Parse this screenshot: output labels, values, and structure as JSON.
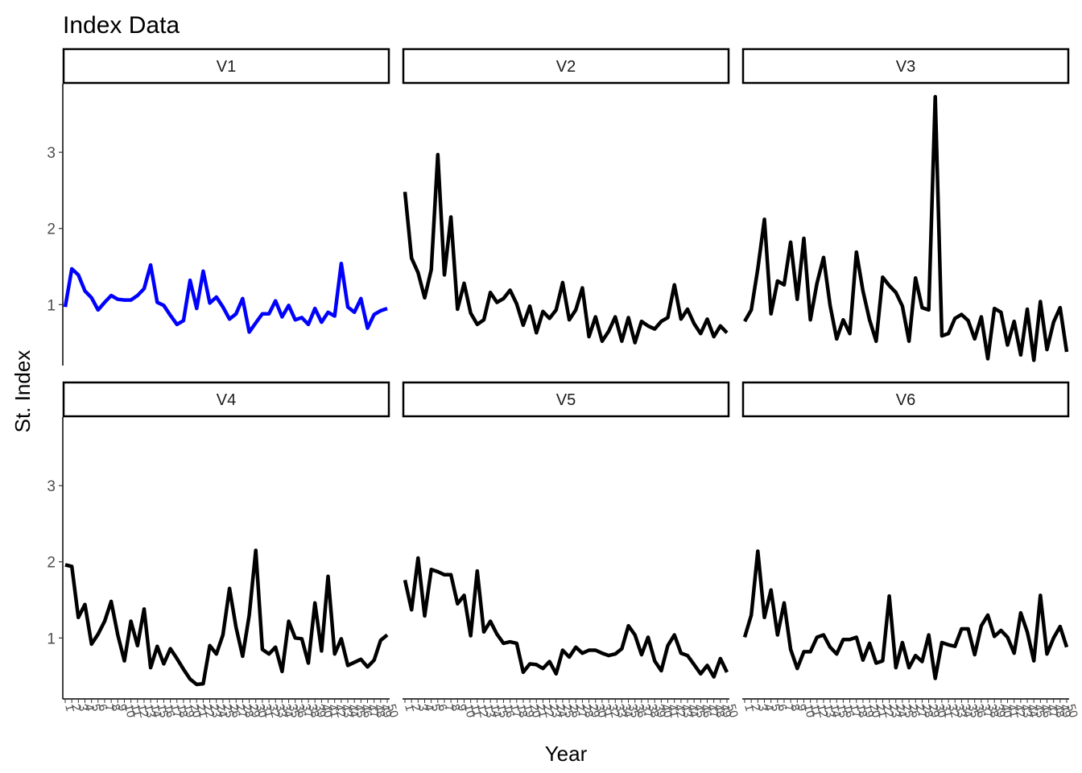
{
  "chart_data": {
    "type": "line",
    "title": "Index Data",
    "xlabel": "Year",
    "ylabel": "St. Index",
    "ylim": [
      0.2,
      3.9
    ],
    "xlim": [
      1,
      50
    ],
    "y_ticks": [
      1,
      2,
      3
    ],
    "x_ticks": [
      1,
      2,
      3,
      4,
      5,
      6,
      7,
      8,
      9,
      10,
      11,
      12,
      13,
      14,
      15,
      16,
      17,
      18,
      19,
      20,
      21,
      22,
      23,
      24,
      25,
      26,
      27,
      28,
      29,
      30,
      31,
      32,
      33,
      34,
      35,
      36,
      37,
      38,
      39,
      40,
      41,
      42,
      43,
      44,
      45,
      46,
      47,
      48,
      49,
      50
    ],
    "x_tick_labels": [
      "1",
      "2",
      "3",
      "4",
      "5",
      "6",
      "7",
      "8",
      "9",
      "10",
      "11",
      "12",
      "13",
      "14",
      "15",
      "16",
      "17",
      "18",
      "19",
      "20",
      "21",
      "22",
      "23",
      "24",
      "25",
      "26",
      "27",
      "28",
      "29",
      "30",
      "31",
      "32",
      "33",
      "34",
      "35",
      "36",
      "37",
      "38",
      "39",
      "40",
      "41",
      "42",
      "43",
      "44",
      "45",
      "46",
      "47",
      "48",
      "49",
      "50"
    ],
    "grid": false,
    "layout": "facet 2 rows x 3 columns, shared axes",
    "x": [
      1,
      2,
      3,
      4,
      5,
      6,
      7,
      8,
      9,
      10,
      11,
      12,
      13,
      14,
      15,
      16,
      17,
      18,
      19,
      20,
      21,
      22,
      23,
      24,
      25,
      26,
      27,
      28,
      29,
      30,
      31,
      32,
      33,
      34,
      35,
      36,
      37,
      38,
      39,
      40,
      41,
      42,
      43,
      44,
      45,
      46,
      47,
      48,
      49,
      50
    ],
    "series": [
      {
        "name": "V1",
        "color": "#0000ff",
        "values": [
          0.97,
          1.47,
          1.39,
          1.18,
          1.09,
          0.93,
          1.03,
          1.12,
          1.07,
          1.06,
          1.06,
          1.12,
          1.21,
          1.52,
          1.03,
          0.99,
          0.86,
          0.74,
          0.79,
          1.32,
          0.95,
          1.44,
          1.02,
          1.1,
          0.97,
          0.81,
          0.88,
          1.08,
          0.64,
          0.76,
          0.88,
          0.88,
          1.05,
          0.84,
          0.99,
          0.8,
          0.83,
          0.74,
          0.95,
          0.77,
          0.9,
          0.85,
          1.54,
          0.97,
          0.9,
          1.08,
          0.69,
          0.87,
          0.92,
          0.95
        ]
      },
      {
        "name": "V2",
        "color": "#000000",
        "values": [
          2.48,
          1.61,
          1.42,
          1.09,
          1.46,
          2.97,
          1.39,
          2.15,
          0.94,
          1.28,
          0.89,
          0.74,
          0.8,
          1.16,
          1.03,
          1.08,
          1.19,
          1.01,
          0.73,
          0.98,
          0.63,
          0.91,
          0.82,
          0.93,
          1.29,
          0.8,
          0.93,
          1.22,
          0.58,
          0.84,
          0.52,
          0.65,
          0.84,
          0.52,
          0.83,
          0.5,
          0.78,
          0.72,
          0.68,
          0.78,
          0.83,
          1.26,
          0.81,
          0.94,
          0.75,
          0.62,
          0.81,
          0.58,
          0.72,
          0.63
        ]
      },
      {
        "name": "V3",
        "color": "#000000",
        "values": [
          0.78,
          0.93,
          1.47,
          2.12,
          0.88,
          1.31,
          1.26,
          1.82,
          1.07,
          1.87,
          0.8,
          1.28,
          1.62,
          0.99,
          0.55,
          0.8,
          0.62,
          1.69,
          1.18,
          0.8,
          0.52,
          1.36,
          1.25,
          1.16,
          0.98,
          0.52,
          1.35,
          0.96,
          0.93,
          3.73,
          0.59,
          0.62,
          0.82,
          0.87,
          0.79,
          0.55,
          0.84,
          0.29,
          0.95,
          0.9,
          0.47,
          0.78,
          0.34,
          0.94,
          0.27,
          1.04,
          0.41,
          0.77,
          0.96,
          0.38
        ]
      },
      {
        "name": "V4",
        "color": "#000000",
        "values": [
          1.96,
          1.94,
          1.27,
          1.44,
          0.92,
          1.05,
          1.22,
          1.48,
          1.04,
          0.7,
          1.22,
          0.9,
          1.38,
          0.61,
          0.89,
          0.66,
          0.86,
          0.73,
          0.59,
          0.46,
          0.39,
          0.4,
          0.9,
          0.79,
          1.04,
          1.65,
          1.14,
          0.76,
          1.3,
          2.15,
          0.85,
          0.79,
          0.88,
          0.56,
          1.22,
          1.0,
          0.99,
          0.67,
          1.46,
          0.83,
          1.81,
          0.79,
          0.99,
          0.64,
          0.68,
          0.72,
          0.62,
          0.71,
          0.97,
          1.04
        ]
      },
      {
        "name": "V5",
        "color": "#000000",
        "values": [
          1.76,
          1.37,
          2.05,
          1.29,
          1.9,
          1.87,
          1.83,
          1.83,
          1.45,
          1.56,
          1.03,
          1.88,
          1.08,
          1.22,
          1.05,
          0.93,
          0.95,
          0.93,
          0.55,
          0.66,
          0.65,
          0.6,
          0.69,
          0.53,
          0.84,
          0.75,
          0.88,
          0.8,
          0.84,
          0.84,
          0.8,
          0.77,
          0.79,
          0.86,
          1.16,
          1.04,
          0.78,
          1.01,
          0.7,
          0.57,
          0.9,
          1.04,
          0.8,
          0.77,
          0.65,
          0.53,
          0.64,
          0.49,
          0.73,
          0.55
        ]
      },
      {
        "name": "V6",
        "color": "#000000",
        "values": [
          1.01,
          1.3,
          2.14,
          1.27,
          1.63,
          1.04,
          1.46,
          0.85,
          0.6,
          0.82,
          0.82,
          1.01,
          1.04,
          0.88,
          0.79,
          0.98,
          0.98,
          1.01,
          0.71,
          0.93,
          0.67,
          0.7,
          1.55,
          0.61,
          0.94,
          0.61,
          0.77,
          0.69,
          1.04,
          0.47,
          0.94,
          0.91,
          0.89,
          1.12,
          1.12,
          0.78,
          1.16,
          1.3,
          1.02,
          1.1,
          1.01,
          0.8,
          1.33,
          1.08,
          0.7,
          1.56,
          0.79,
          1.0,
          1.15,
          0.88
        ]
      }
    ]
  }
}
